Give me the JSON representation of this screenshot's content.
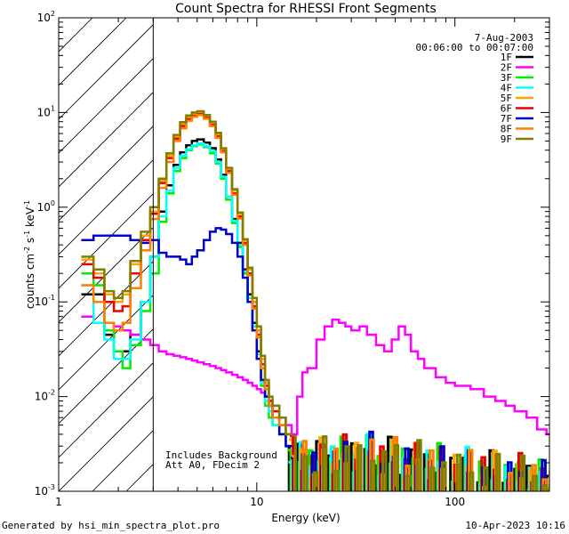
{
  "chart_data": {
    "type": "line",
    "title": "Count Spectra for RHESSI Front Segments",
    "xlabel": "Energy (keV)",
    "ylabel_base": "counts cm",
    "ylabel_exp1": "-2",
    "ylabel_mid": " s",
    "ylabel_exp2": "-1",
    "ylabel_end": " keV",
    "ylabel_exp3": "-1",
    "x_scale": "log",
    "y_scale": "log",
    "xlim": [
      1,
      300
    ],
    "ylim": [
      0.001,
      100
    ],
    "x_ticks": [
      {
        "value": 1,
        "label": "1"
      },
      {
        "value": 10,
        "label": "10"
      },
      {
        "value": 100,
        "label": "100"
      }
    ],
    "y_ticks": [
      {
        "value": 0.001,
        "base": "10",
        "exp": "-3"
      },
      {
        "value": 0.01,
        "base": "10",
        "exp": "-2"
      },
      {
        "value": 0.1,
        "base": "10",
        "exp": "-1"
      },
      {
        "value": 1,
        "base": "10",
        "exp": "0"
      },
      {
        "value": 10,
        "base": "10",
        "exp": "1"
      },
      {
        "value": 100,
        "base": "10",
        "exp": "2"
      }
    ],
    "excluded_region_keV": [
      1,
      3
    ],
    "date": "7-Aug-2003",
    "time_range": "00:06:00 to 00:07:00",
    "annotation_line1": "Includes Background",
    "annotation_line2": "Att A0, FDecim 2",
    "footer_left": "Generated by hsi_min_spectra_plot.pro",
    "footer_right": "10-Apr-2023 10:16",
    "energy_bins_keV": [
      1.3,
      1.5,
      1.7,
      1.9,
      2.1,
      2.3,
      2.6,
      2.9,
      3.2,
      3.5,
      3.8,
      4.1,
      4.4,
      4.7,
      5.0,
      5.4,
      5.8,
      6.2,
      6.6,
      7.0,
      7.5,
      8.0,
      8.5,
      9.0,
      9.5,
      10.0,
      10.5,
      11.0,
      11.5,
      12.0,
      13.0,
      14.0
    ],
    "series": [
      {
        "name": "1F",
        "color": "#000000",
        "values": [
          0.12,
          0.12,
          0.045,
          0.03,
          0.03,
          0.045,
          0.1,
          0.3,
          0.9,
          1.7,
          2.8,
          3.8,
          4.5,
          5.0,
          5.2,
          4.8,
          4.2,
          3.2,
          2.2,
          1.3,
          0.75,
          0.42,
          0.22,
          0.12,
          0.06,
          0.03,
          0.015,
          0.01,
          0.008,
          0.006,
          0.004,
          0.003
        ]
      },
      {
        "name": "2F",
        "color": "#ff00ff",
        "values": [
          0.07,
          0.06,
          0.06,
          0.055,
          0.05,
          0.045,
          0.04,
          0.035,
          0.03,
          0.028,
          0.027,
          0.026,
          0.025,
          0.024,
          0.023,
          0.022,
          0.021,
          0.02,
          0.019,
          0.018,
          0.017,
          0.016,
          0.015,
          0.014,
          0.013,
          0.012,
          0.011,
          0.01,
          0.009,
          0.008,
          0.006,
          0.005
        ]
      },
      {
        "name": "3F",
        "color": "#00ee00",
        "values": [
          0.2,
          0.15,
          0.05,
          0.03,
          0.02,
          0.035,
          0.08,
          0.2,
          0.7,
          1.4,
          2.4,
          3.3,
          4.0,
          4.4,
          4.6,
          4.3,
          3.7,
          2.9,
          2.0,
          1.2,
          0.68,
          0.38,
          0.2,
          0.1,
          0.05,
          0.025,
          0.013,
          0.008,
          0.006,
          0.005,
          0.004,
          0.003
        ]
      },
      {
        "name": "4F",
        "color": "#00ffff",
        "values": [
          0.15,
          0.06,
          0.04,
          0.025,
          0.025,
          0.04,
          0.1,
          0.3,
          0.8,
          1.5,
          2.6,
          3.5,
          4.1,
          4.5,
          4.7,
          4.4,
          3.9,
          3.0,
          2.1,
          1.3,
          0.72,
          0.4,
          0.21,
          0.11,
          0.055,
          0.028,
          0.014,
          0.009,
          0.007,
          0.005,
          0.004,
          0.003
        ]
      },
      {
        "name": "5F",
        "color": "#ffa500",
        "values": [
          0.28,
          0.2,
          0.12,
          0.1,
          0.12,
          0.25,
          0.5,
          0.9,
          1.9,
          3.5,
          5.5,
          7.5,
          8.8,
          9.5,
          9.8,
          9.0,
          7.6,
          5.8,
          4.0,
          2.5,
          1.5,
          0.85,
          0.45,
          0.22,
          0.1,
          0.05,
          0.025,
          0.014,
          0.009,
          0.007,
          0.005,
          0.004
        ]
      },
      {
        "name": "6F",
        "color": "#ee0000",
        "values": [
          0.25,
          0.18,
          0.1,
          0.08,
          0.09,
          0.2,
          0.45,
          0.85,
          1.8,
          3.3,
          5.3,
          7.2,
          8.5,
          9.2,
          9.6,
          8.8,
          7.4,
          5.6,
          3.9,
          2.4,
          1.4,
          0.8,
          0.42,
          0.2,
          0.09,
          0.045,
          0.022,
          0.013,
          0.009,
          0.007,
          0.005,
          0.004
        ]
      },
      {
        "name": "7F",
        "color": "#0000cc",
        "values": [
          0.45,
          0.5,
          0.5,
          0.5,
          0.5,
          0.45,
          0.42,
          0.45,
          0.33,
          0.3,
          0.3,
          0.28,
          0.25,
          0.3,
          0.35,
          0.45,
          0.55,
          0.6,
          0.58,
          0.52,
          0.42,
          0.3,
          0.18,
          0.1,
          0.05,
          0.025,
          0.015,
          0.01,
          0.008,
          0.006,
          0.004,
          0.003
        ]
      },
      {
        "name": "8F",
        "color": "#ff7f00",
        "values": [
          0.15,
          0.1,
          0.06,
          0.05,
          0.06,
          0.14,
          0.35,
          0.75,
          1.6,
          3.0,
          5.0,
          6.8,
          8.2,
          9.0,
          9.4,
          8.6,
          7.2,
          5.4,
          3.8,
          2.3,
          1.35,
          0.76,
          0.4,
          0.19,
          0.085,
          0.042,
          0.02,
          0.012,
          0.008,
          0.006,
          0.005,
          0.004
        ]
      },
      {
        "name": "9F",
        "color": "#808000",
        "values": [
          0.3,
          0.22,
          0.13,
          0.11,
          0.13,
          0.27,
          0.55,
          1.0,
          2.0,
          3.7,
          5.8,
          7.9,
          9.3,
          10.0,
          10.3,
          9.4,
          8.0,
          6.1,
          4.2,
          2.6,
          1.55,
          0.88,
          0.46,
          0.23,
          0.11,
          0.055,
          0.027,
          0.015,
          0.01,
          0.008,
          0.006,
          0.004
        ]
      }
    ],
    "series_2F_tail": {
      "energy_keV": [
        15,
        16,
        17,
        18,
        19,
        20,
        22,
        24,
        26,
        28,
        30,
        33,
        36,
        40,
        44,
        48,
        52,
        56,
        60,
        65,
        70,
        80,
        90,
        100,
        120,
        140,
        160,
        180,
        200,
        230,
        260,
        290
      ],
      "values": [
        0.004,
        0.01,
        0.018,
        0.02,
        0.02,
        0.04,
        0.055,
        0.065,
        0.06,
        0.055,
        0.05,
        0.055,
        0.045,
        0.035,
        0.03,
        0.04,
        0.055,
        0.045,
        0.03,
        0.025,
        0.02,
        0.016,
        0.014,
        0.013,
        0.012,
        0.01,
        0.009,
        0.008,
        0.007,
        0.006,
        0.0045,
        0.004
      ]
    },
    "noise_floor": {
      "energy_keV": [
        14,
        16,
        18,
        20,
        23,
        26,
        30,
        35,
        40,
        46,
        53,
        60,
        70,
        80,
        95,
        110,
        130,
        150,
        175,
        200,
        230,
        260,
        290
      ],
      "values": [
        0.003,
        0.0025,
        0.002,
        0.0028,
        0.0022,
        0.003,
        0.0024,
        0.0032,
        0.0022,
        0.0028,
        0.0021,
        0.0026,
        0.002,
        0.0024,
        0.0018,
        0.0022,
        0.0017,
        0.002,
        0.0015,
        0.0019,
        0.0014,
        0.0016,
        0.0013
      ]
    }
  }
}
